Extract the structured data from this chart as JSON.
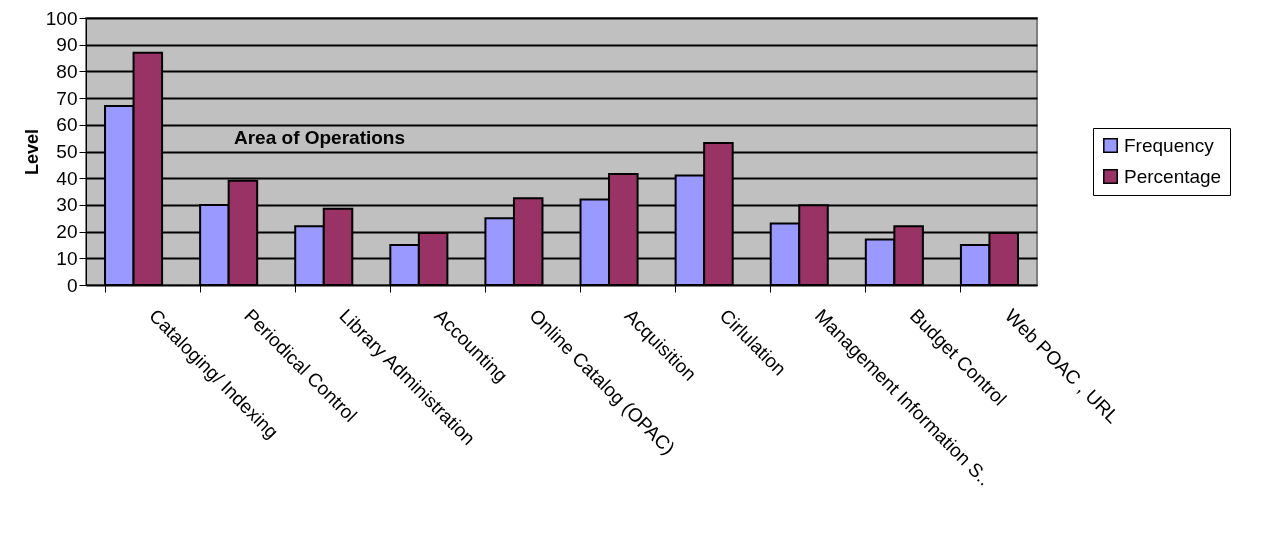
{
  "chart_data": {
    "type": "bar",
    "title": "Area of Operations",
    "ylabel": "Level",
    "categories": [
      "Cataloging/ Indexing",
      "Periodical Control",
      "Library Administration",
      "Accounting",
      "Online Catalog (OPAC)",
      "Acquisition",
      "Cirlulation",
      "Management Information S..",
      "Budget Control",
      "Web POAC , URL"
    ],
    "series": [
      {
        "name": "Frequency",
        "color": "#9999ff",
        "values": [
          67,
          30,
          22,
          15,
          25,
          32,
          41,
          23,
          17,
          15
        ]
      },
      {
        "name": "Percentage",
        "color": "#993366",
        "values": [
          87,
          39,
          28.6,
          19.5,
          32.5,
          41.6,
          53.2,
          29.9,
          22,
          19.5
        ]
      }
    ],
    "ylim": [
      0,
      100
    ],
    "yticks": [
      0,
      10,
      20,
      30,
      40,
      50,
      60,
      70,
      80,
      90,
      100
    ],
    "grid": "y",
    "legend": "right"
  }
}
